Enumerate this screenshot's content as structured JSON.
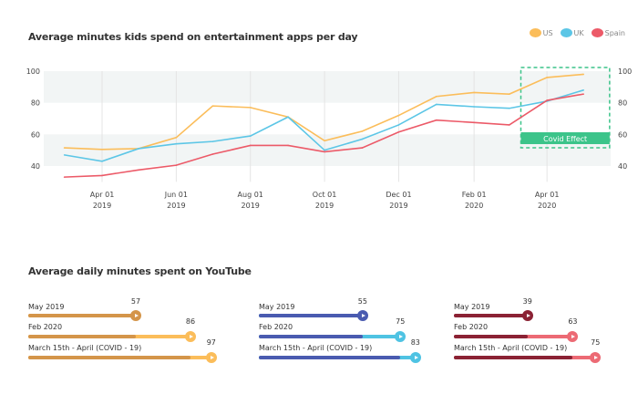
{
  "chart_data": [
    {
      "type": "line",
      "title": "Average minutes kids spend on entertainment apps per day",
      "x": [
        "2019-03-01",
        "2019-04-01",
        "2019-05-01",
        "2019-06-01",
        "2019-07-01",
        "2019-08-01",
        "2019-09-01",
        "2019-10-01",
        "2019-11-01",
        "2019-12-01",
        "2020-01-01",
        "2020-02-01",
        "2020-03-01",
        "2020-04-01",
        "2020-05-01"
      ],
      "xticks": [
        {
          "date": "2019-04-01",
          "l1": "Apr 01",
          "l2": "2019"
        },
        {
          "date": "2019-06-01",
          "l1": "Jun 01",
          "l2": "2019"
        },
        {
          "date": "2019-08-01",
          "l1": "Aug 01",
          "l2": "2019"
        },
        {
          "date": "2019-10-01",
          "l1": "Oct 01",
          "l2": "2019"
        },
        {
          "date": "2019-12-01",
          "l1": "Dec 01",
          "l2": "2019"
        },
        {
          "date": "2020-02-01",
          "l1": "Feb 01",
          "l2": "2020"
        },
        {
          "date": "2020-04-01",
          "l1": "Apr 01",
          "l2": "2020"
        }
      ],
      "yticks": [
        40,
        60,
        80,
        100
      ],
      "ylim": [
        30,
        100
      ],
      "grid": "vertical lines + alternating horizontal bands",
      "legend": "top-right",
      "series": [
        {
          "name": "US",
          "color": "#fbbd5a",
          "values": [
            51.5,
            50.5,
            51,
            58,
            78,
            77,
            71,
            56,
            62,
            72,
            84,
            86.5,
            85.5,
            96,
            98
          ]
        },
        {
          "name": "UK",
          "color": "#5cc6e6",
          "values": [
            47,
            43,
            51,
            54,
            55.5,
            59,
            71,
            50,
            57,
            66,
            79,
            77.5,
            76.5,
            81,
            88
          ]
        },
        {
          "name": "Spain",
          "color": "#ec5a68",
          "values": [
            33,
            34,
            37.5,
            40.5,
            47.5,
            53,
            53,
            49,
            51.5,
            61.5,
            69,
            67.5,
            66,
            81.5,
            85.5
          ]
        }
      ],
      "annotation": {
        "label": "Covid Effect",
        "from": "2020-03-15",
        "to": "2020-05-15",
        "color": "#3cc48a"
      }
    },
    {
      "type": "bar",
      "title": "Average daily minutes spent on YouTube",
      "categories": [
        "May 2019",
        "Feb 2020",
        "March 15th - April (COVID - 19)"
      ],
      "groups": [
        {
          "dark": "#d4954a",
          "light": "#fbbd5a",
          "values": [
            57,
            86,
            97
          ]
        },
        {
          "dark": "#4a5bb0",
          "light": "#4fc3e3",
          "values": [
            55,
            75,
            83
          ]
        },
        {
          "dark": "#8b2234",
          "light": "#ec6a74",
          "values": [
            39,
            63,
            75
          ]
        }
      ]
    }
  ]
}
